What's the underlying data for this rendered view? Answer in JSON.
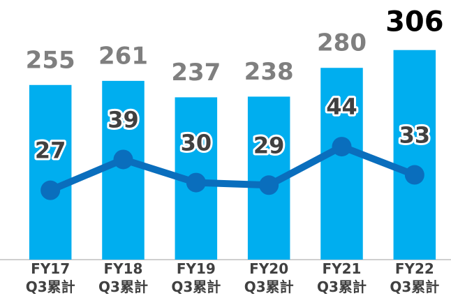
{
  "chart_data": {
    "type": "bar-line",
    "categories": [
      "FY17\nQ3累計",
      "FY18\nQ3累計",
      "FY19\nQ3累計",
      "FY20\nQ3累計",
      "FY21\nQ3累計",
      "FY22\nQ3累計"
    ],
    "series": [
      {
        "type": "bar",
        "color": "#00aeef",
        "label_colors": [
          "#7f7f7f",
          "#7f7f7f",
          "#7f7f7f",
          "#7f7f7f",
          "#7f7f7f",
          "#000000"
        ],
        "values": [
          255,
          261,
          237,
          238,
          280,
          306
        ]
      },
      {
        "type": "line",
        "axis": "y2",
        "color": "#0a6ebd",
        "values": [
          27,
          39,
          30,
          29,
          44,
          33
        ]
      }
    ],
    "ylim": [
      0,
      375
    ],
    "y2lim": [
      0,
      100
    ],
    "grid": false
  }
}
